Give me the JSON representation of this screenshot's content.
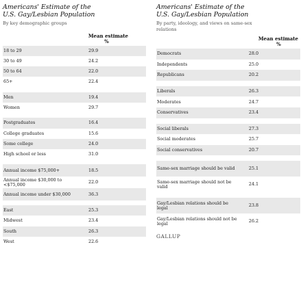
{
  "left": {
    "title_line1": "Americans' Estimate of the",
    "title_line2": "U.S. Gay/Lesbian Population",
    "subtitle": "By key demographic groups",
    "col_header": "Mean estimate",
    "col_unit": "%",
    "groups": [
      {
        "rows": [
          {
            "label": "18 to 29",
            "value": "29.9"
          },
          {
            "label": "30 to 49",
            "value": "24.2"
          },
          {
            "label": "50 to 64",
            "value": "22.0"
          },
          {
            "label": "65+",
            "value": "22.4"
          }
        ]
      },
      {
        "rows": [
          {
            "label": "Men",
            "value": "19.4"
          },
          {
            "label": "Women",
            "value": "29.7"
          }
        ]
      },
      {
        "rows": [
          {
            "label": "Postgraduates",
            "value": "16.4"
          },
          {
            "label": "College graduates",
            "value": "15.6"
          },
          {
            "label": "Some college",
            "value": "24.0"
          },
          {
            "label": "High school or less",
            "value": "31.0"
          }
        ]
      },
      {
        "rows": [
          {
            "label": "Annual income $75,000+",
            "value": "18.5"
          },
          {
            "label": "Annual income $30,000 to <$75,000",
            "value": "22.0"
          },
          {
            "label": "Annual income under $30,000",
            "value": "36.3"
          }
        ]
      },
      {
        "rows": [
          {
            "label": "East",
            "value": "25.3"
          },
          {
            "label": "Midwest",
            "value": "23.4"
          },
          {
            "label": "South",
            "value": "26.3"
          },
          {
            "label": "West",
            "value": "22.6"
          }
        ]
      }
    ]
  },
  "right": {
    "title_line1": "Americans' Estimate of the",
    "title_line2": "U.S. Gay/Lesbian Population",
    "subtitle_line1": "By party, ideology, and views on same-sex",
    "subtitle_line2": "relations",
    "col_header": "Mean estimate",
    "col_unit": "%",
    "groups": [
      {
        "rows": [
          {
            "label": "Democrats",
            "value": "28.0"
          },
          {
            "label": "Independents",
            "value": "25.0"
          },
          {
            "label": "Republicans",
            "value": "20.2"
          }
        ]
      },
      {
        "rows": [
          {
            "label": "Liberals",
            "value": "26.3"
          },
          {
            "label": "Moderates",
            "value": "24.7"
          },
          {
            "label": "Conservatives",
            "value": "23.4"
          }
        ]
      },
      {
        "rows": [
          {
            "label": "Social liberals",
            "value": "27.3"
          },
          {
            "label": "Social moderates",
            "value": "25.7"
          },
          {
            "label": "Social conservatives",
            "value": "20.7"
          }
        ]
      },
      {
        "rows": [
          {
            "label": "Same-sex marriage should be valid",
            "value": "25.1"
          },
          {
            "label": "Same-sex marriage should not be valid",
            "value": "24.1"
          }
        ]
      },
      {
        "rows": [
          {
            "label": "Gay/Lesbian relations should be legal",
            "value": "23.8"
          },
          {
            "label": "Gay/Lesbian relations should not be legal",
            "value": "26.2"
          }
        ]
      }
    ],
    "brand": "GALLUP"
  }
}
